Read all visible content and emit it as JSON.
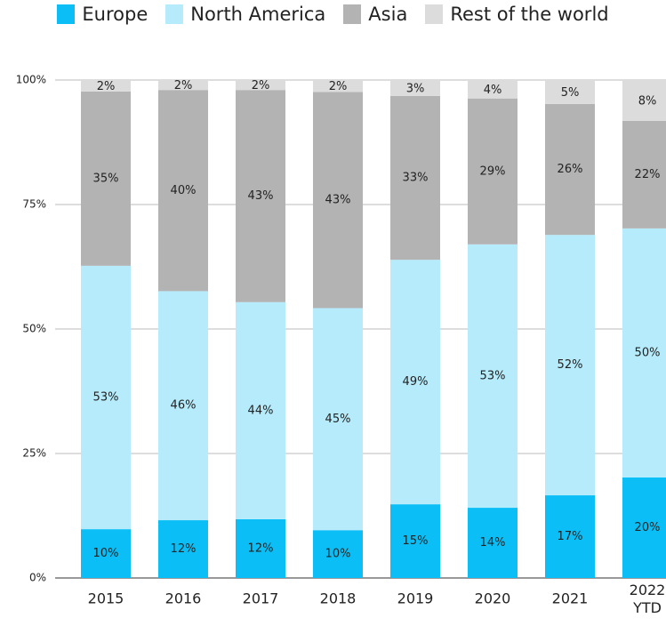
{
  "chart_data": {
    "type": "stacked_bar",
    "categories": [
      "2015",
      "2016",
      "2017",
      "2018",
      "2019",
      "2020",
      "2021",
      "2022 YTD"
    ],
    "series": [
      {
        "name": "Europe",
        "color": "#0bbef5",
        "values": [
          9.8,
          11.6,
          11.8,
          9.6,
          14.8,
          14.1,
          16.6,
          20.2
        ],
        "value_labels": [
          "10%",
          "12%",
          "12%",
          "10%",
          "15%",
          "14%",
          "17%",
          "20%"
        ]
      },
      {
        "name": "North America",
        "color": "#b5ebfb",
        "values": [
          52.9,
          46.0,
          43.6,
          44.6,
          49.1,
          52.9,
          52.3,
          50.0
        ],
        "value_labels": [
          "53%",
          "46%",
          "44%",
          "45%",
          "49%",
          "53%",
          "52%",
          "50%"
        ]
      },
      {
        "name": "Asia",
        "color": "#b3b3b3",
        "values": [
          35.0,
          40.4,
          42.6,
          43.4,
          32.9,
          29.3,
          26.3,
          21.6
        ],
        "value_labels": [
          "35%",
          "40%",
          "43%",
          "43%",
          "33%",
          "29%",
          "26%",
          "22%"
        ]
      },
      {
        "name": "Rest of the world",
        "color": "#dcdcdc",
        "values": [
          2.3,
          2.0,
          2.0,
          2.4,
          3.2,
          3.7,
          4.8,
          8.2
        ],
        "value_labels": [
          "2%",
          "2%",
          "2%",
          "2%",
          "3%",
          "4%",
          "5%",
          "8%"
        ]
      }
    ],
    "ylim": [
      0,
      100
    ],
    "yticks": [
      {
        "value": 0,
        "label": "0%"
      },
      {
        "value": 25,
        "label": "25%"
      },
      {
        "value": 50,
        "label": "50%"
      },
      {
        "value": 75,
        "label": "75%"
      },
      {
        "value": 100,
        "label": "100%"
      }
    ],
    "grid": true,
    "legend": "top"
  }
}
